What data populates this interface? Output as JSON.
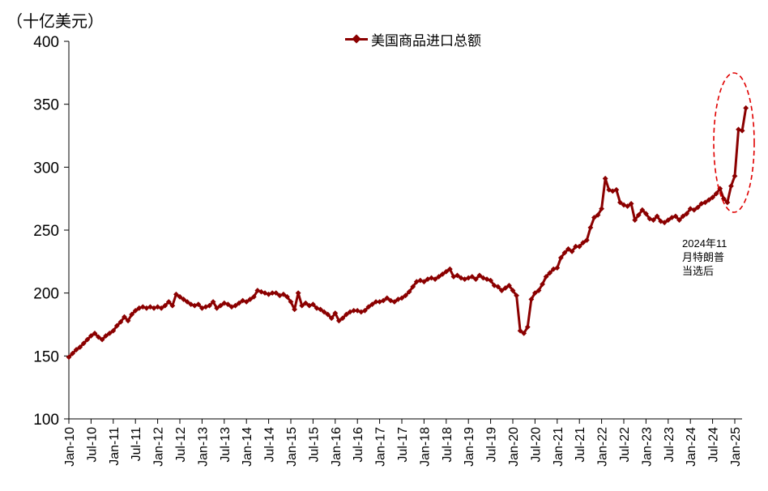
{
  "chart_data": {
    "type": "line",
    "unit_label": "（十亿美元）",
    "title": "",
    "xlabel": "",
    "ylabel": "",
    "ylim": [
      100,
      400
    ],
    "yticks": [
      "100",
      "150",
      "200",
      "250",
      "300",
      "350",
      "400"
    ],
    "xtick_labels": [
      "Jan-10",
      "Jul-10",
      "Jan-11",
      "Jul-11",
      "Jan-12",
      "Jul-12",
      "Jan-13",
      "Jul-13",
      "Jan-14",
      "Jul-14",
      "Jan-15",
      "Jul-15",
      "Jan-16",
      "Jul-16",
      "Jan-17",
      "Jul-17",
      "Jan-18",
      "Jul-18",
      "Jan-19",
      "Jul-19",
      "Jan-20",
      "Jul-20",
      "Jan-21",
      "Jul-21",
      "Jan-22",
      "Jul-22",
      "Jan-23",
      "Jul-23",
      "Jan-24",
      "Jul-24",
      "Jan-25"
    ],
    "legend": {
      "position": "top-center",
      "entries": [
        "美国商品进口总额"
      ]
    },
    "grid": false,
    "annotation": {
      "lines": [
        "2024年11",
        "月特朗普",
        "当选后"
      ],
      "highlight": "dashed ellipse around Nov-2024 to Feb-2025"
    },
    "series": [
      {
        "name": "美国商品进口总额",
        "color": "#8B0000",
        "start": "2010-01",
        "frequency": "monthly",
        "values": [
          149,
          152,
          155,
          157,
          160,
          163,
          166,
          168,
          165,
          163,
          166,
          168,
          170,
          174,
          177,
          181,
          178,
          183,
          186,
          188,
          189,
          188,
          189,
          188,
          189,
          188,
          190,
          193,
          190,
          199,
          197,
          195,
          193,
          191,
          190,
          191,
          188,
          189,
          190,
          193,
          188,
          190,
          192,
          191,
          189,
          190,
          192,
          194,
          193,
          195,
          197,
          202,
          201,
          200,
          199,
          200,
          200,
          198,
          199,
          197,
          193,
          187,
          200,
          190,
          192,
          190,
          191,
          188,
          187,
          185,
          183,
          180,
          184,
          178,
          180,
          183,
          185,
          186,
          186,
          185,
          186,
          189,
          191,
          193,
          193,
          194,
          196,
          194,
          193,
          195,
          196,
          198,
          201,
          205,
          209,
          210,
          209,
          211,
          212,
          211,
          213,
          215,
          217,
          219,
          213,
          214,
          212,
          211,
          212,
          213,
          211,
          214,
          212,
          211,
          210,
          206,
          205,
          202,
          204,
          206,
          202,
          198,
          170,
          168,
          173,
          195,
          200,
          202,
          207,
          213,
          216,
          219,
          220,
          228,
          232,
          235,
          233,
          237,
          237,
          240,
          242,
          252,
          260,
          262,
          267,
          291,
          282,
          281,
          282,
          272,
          270,
          269,
          271,
          258,
          262,
          266,
          263,
          259,
          258,
          261,
          257,
          256,
          258,
          260,
          261,
          258,
          261,
          263,
          267,
          266,
          268,
          271,
          272,
          274,
          276,
          279,
          283,
          275,
          272,
          285,
          293,
          330,
          329,
          347
        ]
      }
    ]
  }
}
